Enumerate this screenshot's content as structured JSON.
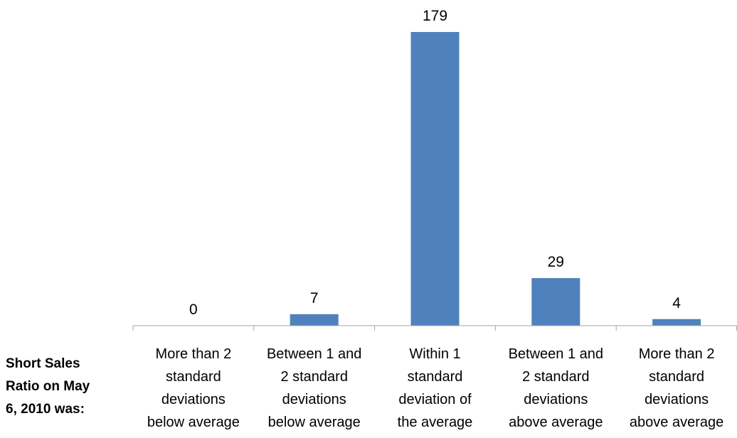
{
  "chart_data": {
    "type": "bar",
    "title": "",
    "xlabel": "Short Sales\nRatio on May\n6, 2010 was:",
    "ylabel": "",
    "ylim": [
      0,
      179
    ],
    "grid": false,
    "legend": "none",
    "bar_color": "#4F81BD",
    "axis_color": "#A6A6A6",
    "categories": [
      [
        "More than 2",
        "standard",
        "deviations",
        "below average"
      ],
      [
        "Between 1 and",
        "2 standard",
        "deviations",
        "below average"
      ],
      [
        "Within 1",
        "standard",
        "deviation of",
        "the average"
      ],
      [
        "Between 1 and",
        "2 standard",
        "deviations",
        "above average"
      ],
      [
        "More than 2",
        "standard",
        "deviations",
        "above average"
      ]
    ],
    "values": [
      0,
      7,
      179,
      29,
      4
    ],
    "data_labels": [
      "0",
      "7",
      "179",
      "29",
      "4"
    ]
  }
}
